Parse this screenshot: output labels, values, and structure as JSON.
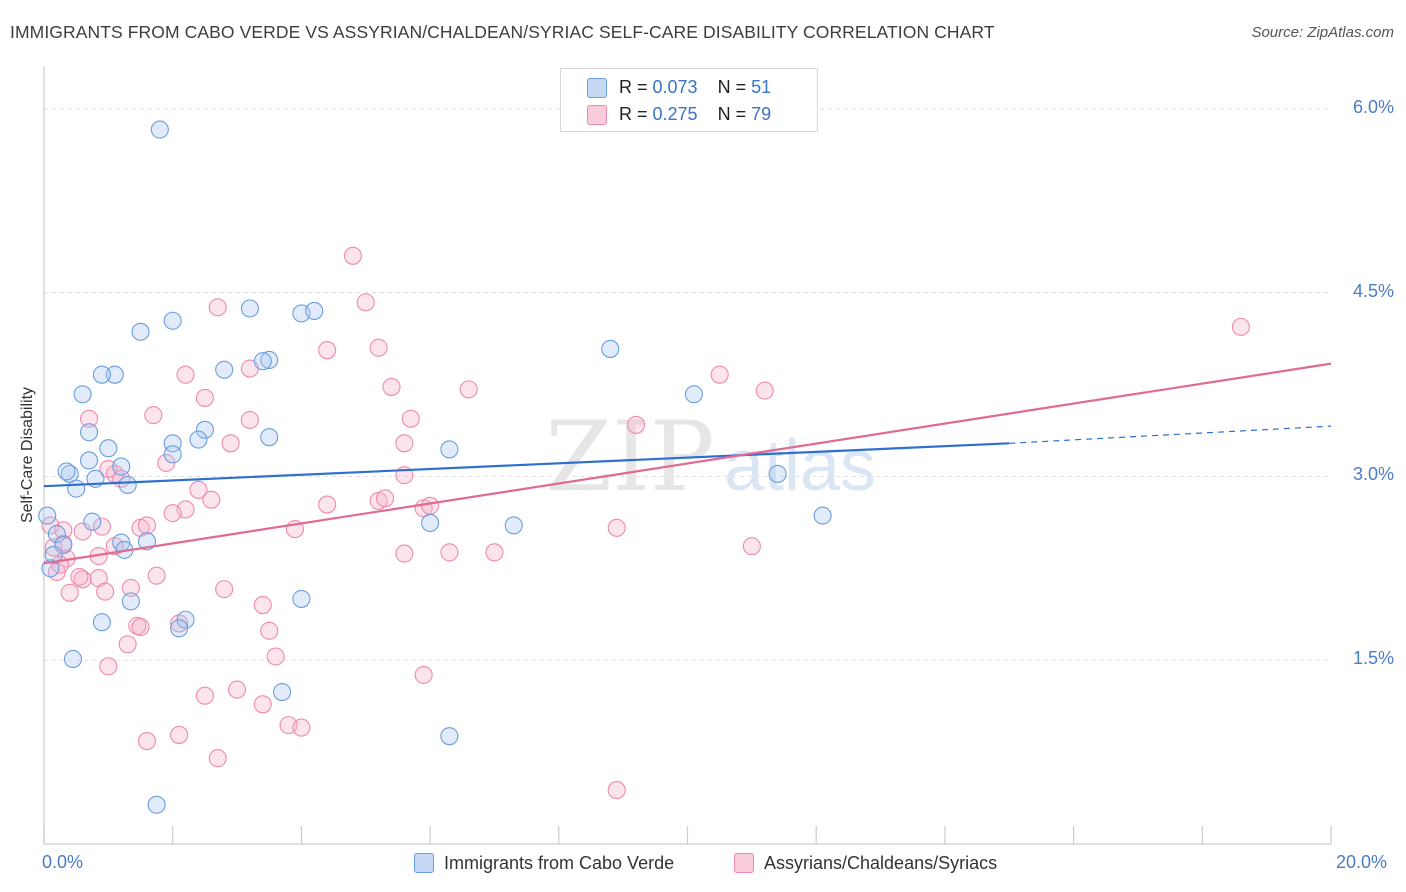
{
  "title": "IMMIGRANTS FROM CABO VERDE VS ASSYRIAN/CHALDEAN/SYRIAC SELF-CARE DISABILITY CORRELATION CHART",
  "source": "Source: ZipAtlas.com",
  "colors": {
    "blue": "#6a9ee0",
    "blue_line": "#2e6fcf",
    "pink": "#ef8aab",
    "pink_line": "#e06a93",
    "tick": "#4a7cc7"
  },
  "legend": {
    "rows": [
      {
        "r_label": "R = ",
        "r_value": "0.073",
        "n_label": "N = ",
        "n_value": "51"
      },
      {
        "r_label": "R = ",
        "r_value": "0.275",
        "n_label": "N = ",
        "n_value": "79"
      }
    ]
  },
  "chart_data": {
    "type": "scatter",
    "title": "IMMIGRANTS FROM CABO VERDE VS ASSYRIAN/CHALDEAN/SYRIAC SELF-CARE DISABILITY CORRELATION CHART",
    "xlabel": "",
    "ylabel": "Self-Care Disability",
    "xlim": [
      0,
      20
    ],
    "ylim": [
      0,
      6.3
    ],
    "x_tick_labels": [
      "0.0%",
      "20.0%"
    ],
    "y_ticks": [
      1.5,
      3.0,
      4.5,
      6.0
    ],
    "y_tick_labels": [
      "1.5%",
      "3.0%",
      "4.5%",
      "6.0%"
    ],
    "grid": true,
    "legend_position": "top-center",
    "series": [
      {
        "name": "Immigrants from Cabo Verde",
        "r": 0.073,
        "n": 51,
        "trend": {
          "x0": 0,
          "y0": 2.92,
          "x1": 15.0,
          "y1": 3.27,
          "dash_to_x": 20,
          "dash_to_y": 3.41
        },
        "points": [
          [
            1.8,
            5.83
          ],
          [
            2.0,
            4.27
          ],
          [
            1.5,
            4.18
          ],
          [
            3.2,
            4.37
          ],
          [
            4.0,
            4.33
          ],
          [
            4.2,
            4.35
          ],
          [
            2.8,
            3.87
          ],
          [
            3.5,
            3.95
          ],
          [
            3.4,
            3.94
          ],
          [
            1.1,
            3.83
          ],
          [
            0.9,
            3.83
          ],
          [
            0.6,
            3.67
          ],
          [
            0.7,
            3.36
          ],
          [
            1.0,
            3.23
          ],
          [
            2.5,
            3.38
          ],
          [
            2.4,
            3.3
          ],
          [
            2.0,
            3.27
          ],
          [
            2.0,
            3.18
          ],
          [
            3.5,
            3.32
          ],
          [
            0.7,
            3.13
          ],
          [
            1.2,
            3.08
          ],
          [
            0.4,
            3.02
          ],
          [
            0.35,
            3.04
          ],
          [
            0.8,
            2.98
          ],
          [
            1.3,
            2.93
          ],
          [
            0.5,
            2.9
          ],
          [
            0.05,
            2.68
          ],
          [
            0.2,
            2.53
          ],
          [
            0.75,
            2.63
          ],
          [
            0.3,
            2.44
          ],
          [
            1.2,
            2.46
          ],
          [
            1.6,
            2.47
          ],
          [
            1.25,
            2.4
          ],
          [
            0.15,
            2.36
          ],
          [
            0.1,
            2.25
          ],
          [
            1.35,
            1.98
          ],
          [
            4.0,
            2.0
          ],
          [
            2.2,
            1.83
          ],
          [
            2.1,
            1.76
          ],
          [
            0.9,
            1.81
          ],
          [
            0.45,
            1.51
          ],
          [
            3.7,
            1.24
          ],
          [
            6.3,
            3.22
          ],
          [
            6.0,
            2.62
          ],
          [
            7.3,
            2.6
          ],
          [
            8.8,
            4.04
          ],
          [
            10.1,
            3.67
          ],
          [
            11.4,
            3.02
          ],
          [
            12.1,
            2.68
          ],
          [
            6.3,
            0.88
          ],
          [
            1.75,
            0.32
          ]
        ]
      },
      {
        "name": "Assyrians/Chaldeans/Syriacs",
        "r": 0.275,
        "n": 79,
        "trend": {
          "x0": 0,
          "y0": 2.29,
          "x1": 20,
          "y1": 3.92
        },
        "points": [
          [
            4.8,
            4.8
          ],
          [
            5.0,
            4.42
          ],
          [
            2.7,
            4.38
          ],
          [
            5.2,
            4.05
          ],
          [
            4.4,
            4.03
          ],
          [
            3.2,
            3.88
          ],
          [
            2.2,
            3.83
          ],
          [
            5.4,
            3.73
          ],
          [
            6.6,
            3.71
          ],
          [
            2.5,
            3.64
          ],
          [
            1.7,
            3.5
          ],
          [
            0.7,
            3.47
          ],
          [
            3.2,
            3.46
          ],
          [
            5.7,
            3.47
          ],
          [
            9.2,
            3.42
          ],
          [
            10.5,
            3.83
          ],
          [
            11.2,
            3.7
          ],
          [
            18.6,
            4.22
          ],
          [
            2.9,
            3.27
          ],
          [
            5.6,
            3.27
          ],
          [
            1.9,
            3.11
          ],
          [
            1.1,
            3.02
          ],
          [
            1.2,
            2.98
          ],
          [
            2.2,
            2.73
          ],
          [
            2.4,
            2.89
          ],
          [
            2.6,
            2.81
          ],
          [
            1.0,
            3.06
          ],
          [
            0.3,
            2.56
          ],
          [
            0.6,
            2.55
          ],
          [
            0.9,
            2.59
          ],
          [
            1.5,
            2.58
          ],
          [
            1.6,
            2.6
          ],
          [
            2.0,
            2.7
          ],
          [
            3.9,
            2.57
          ],
          [
            4.4,
            2.77
          ],
          [
            5.2,
            2.8
          ],
          [
            5.3,
            2.82
          ],
          [
            5.6,
            3.01
          ],
          [
            5.9,
            2.74
          ],
          [
            0.1,
            2.6
          ],
          [
            0.15,
            2.42
          ],
          [
            0.3,
            2.45
          ],
          [
            0.35,
            2.33
          ],
          [
            0.6,
            2.16
          ],
          [
            0.55,
            2.18
          ],
          [
            0.85,
            2.17
          ],
          [
            0.85,
            2.35
          ],
          [
            0.2,
            2.22
          ],
          [
            0.4,
            2.05
          ],
          [
            0.95,
            2.06
          ],
          [
            1.35,
            2.09
          ],
          [
            1.75,
            2.19
          ],
          [
            2.8,
            2.08
          ],
          [
            3.4,
            1.95
          ],
          [
            1.45,
            1.78
          ],
          [
            1.5,
            1.77
          ],
          [
            2.1,
            1.8
          ],
          [
            3.5,
            1.74
          ],
          [
            1.3,
            1.63
          ],
          [
            3.6,
            1.53
          ],
          [
            1.0,
            1.45
          ],
          [
            2.5,
            1.21
          ],
          [
            3.0,
            1.26
          ],
          [
            3.4,
            1.14
          ],
          [
            3.8,
            0.97
          ],
          [
            4.0,
            0.95
          ],
          [
            1.6,
            0.84
          ],
          [
            2.1,
            0.89
          ],
          [
            2.7,
            0.7
          ],
          [
            5.6,
            2.37
          ],
          [
            6.3,
            2.38
          ],
          [
            7.0,
            2.38
          ],
          [
            8.9,
            2.58
          ],
          [
            11.0,
            2.43
          ],
          [
            6.0,
            2.76
          ],
          [
            5.9,
            1.38
          ],
          [
            8.9,
            0.44
          ],
          [
            1.1,
            2.43
          ],
          [
            0.25,
            2.28
          ]
        ]
      }
    ]
  }
}
